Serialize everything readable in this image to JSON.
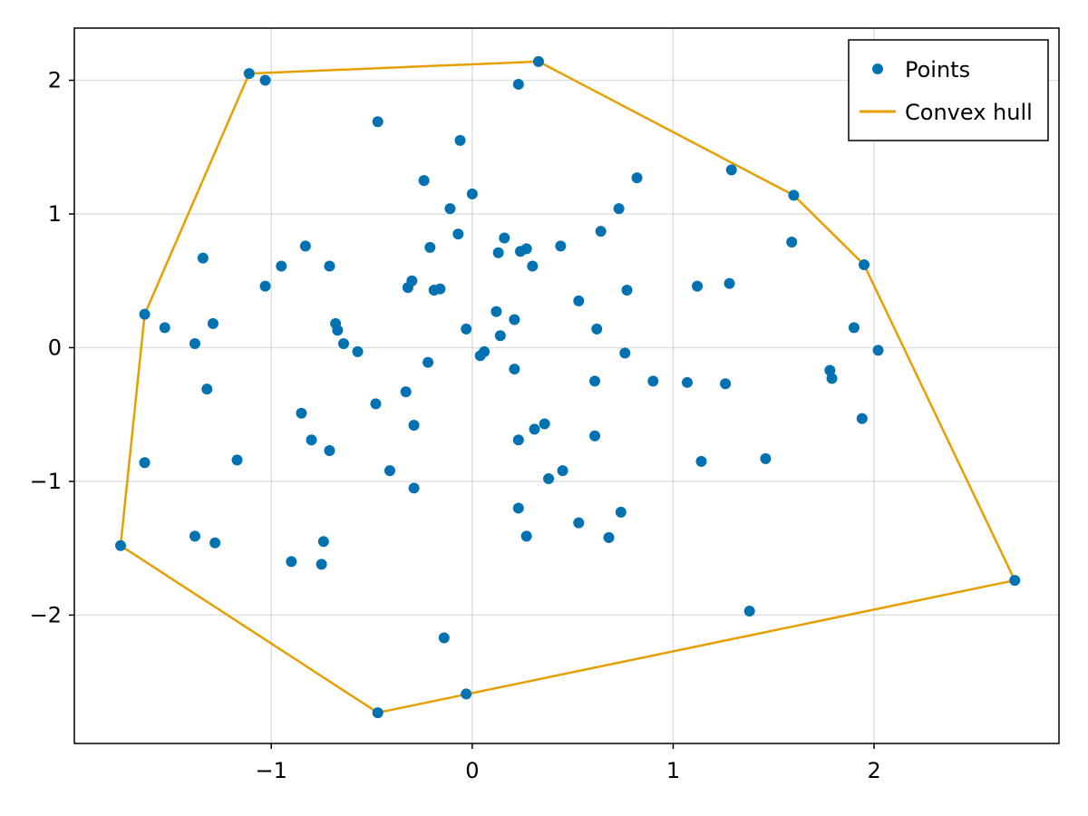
{
  "chart_data": {
    "type": "scatter",
    "title": "",
    "xlabel": "",
    "ylabel": "",
    "xlim": [
      -1.98,
      2.92
    ],
    "ylim": [
      -2.96,
      2.39
    ],
    "grid": true,
    "legend_position": "top-right",
    "x_ticks": [
      {
        "value": -1,
        "label": "−1"
      },
      {
        "value": 0,
        "label": "0"
      },
      {
        "value": 1,
        "label": "1"
      },
      {
        "value": 2,
        "label": "2"
      }
    ],
    "y_ticks": [
      {
        "value": -2,
        "label": "−2"
      },
      {
        "value": -1,
        "label": "−1"
      },
      {
        "value": 0,
        "label": "0"
      },
      {
        "value": 1,
        "label": "1"
      },
      {
        "value": 2,
        "label": "2"
      }
    ],
    "series": [
      {
        "name": "Points",
        "kind": "scatter",
        "color": "#0072b2",
        "points": [
          [
            -1.11,
            2.05
          ],
          [
            -1.03,
            2.0
          ],
          [
            0.33,
            2.14
          ],
          [
            0.23,
            1.97
          ],
          [
            -0.47,
            1.69
          ],
          [
            -0.06,
            1.55
          ],
          [
            -0.24,
            1.25
          ],
          [
            0.0,
            1.15
          ],
          [
            0.82,
            1.27
          ],
          [
            1.29,
            1.33
          ],
          [
            1.6,
            1.14
          ],
          [
            -0.11,
            1.04
          ],
          [
            0.73,
            1.04
          ],
          [
            -0.07,
            0.85
          ],
          [
            0.64,
            0.87
          ],
          [
            -0.21,
            0.75
          ],
          [
            0.16,
            0.82
          ],
          [
            0.24,
            0.72
          ],
          [
            0.27,
            0.74
          ],
          [
            0.13,
            0.71
          ],
          [
            0.44,
            0.76
          ],
          [
            -0.83,
            0.76
          ],
          [
            -1.34,
            0.67
          ],
          [
            -0.95,
            0.61
          ],
          [
            -0.71,
            0.61
          ],
          [
            0.3,
            0.61
          ],
          [
            1.59,
            0.79
          ],
          [
            1.95,
            0.62
          ],
          [
            -1.03,
            0.46
          ],
          [
            -0.3,
            0.5
          ],
          [
            -0.32,
            0.45
          ],
          [
            -0.19,
            0.43
          ],
          [
            -0.16,
            0.44
          ],
          [
            0.77,
            0.43
          ],
          [
            1.12,
            0.46
          ],
          [
            1.28,
            0.48
          ],
          [
            -1.63,
            0.25
          ],
          [
            -1.53,
            0.15
          ],
          [
            -1.29,
            0.18
          ],
          [
            0.53,
            0.35
          ],
          [
            0.12,
            0.27
          ],
          [
            0.21,
            0.21
          ],
          [
            -0.68,
            0.18
          ],
          [
            -0.67,
            0.13
          ],
          [
            -0.03,
            0.14
          ],
          [
            0.14,
            0.09
          ],
          [
            0.62,
            0.14
          ],
          [
            1.9,
            0.15
          ],
          [
            -1.38,
            0.03
          ],
          [
            -0.64,
            0.03
          ],
          [
            -0.57,
            -0.03
          ],
          [
            0.06,
            -0.03
          ],
          [
            0.04,
            -0.06
          ],
          [
            0.76,
            -0.04
          ],
          [
            2.02,
            -0.02
          ],
          [
            -0.22,
            -0.11
          ],
          [
            0.21,
            -0.16
          ],
          [
            1.78,
            -0.17
          ],
          [
            1.79,
            -0.23
          ],
          [
            0.61,
            -0.25
          ],
          [
            0.9,
            -0.25
          ],
          [
            1.07,
            -0.26
          ],
          [
            1.26,
            -0.27
          ],
          [
            -1.32,
            -0.31
          ],
          [
            -0.33,
            -0.33
          ],
          [
            -0.48,
            -0.42
          ],
          [
            -0.85,
            -0.49
          ],
          [
            1.94,
            -0.53
          ],
          [
            -0.29,
            -0.58
          ],
          [
            0.36,
            -0.57
          ],
          [
            0.31,
            -0.61
          ],
          [
            -0.8,
            -0.69
          ],
          [
            0.23,
            -0.69
          ],
          [
            0.61,
            -0.66
          ],
          [
            -0.71,
            -0.77
          ],
          [
            -1.17,
            -0.84
          ],
          [
            -1.63,
            -0.86
          ],
          [
            1.14,
            -0.85
          ],
          [
            1.46,
            -0.83
          ],
          [
            -0.41,
            -0.92
          ],
          [
            0.45,
            -0.92
          ],
          [
            0.38,
            -0.98
          ],
          [
            -0.29,
            -1.05
          ],
          [
            0.23,
            -1.2
          ],
          [
            0.74,
            -1.23
          ],
          [
            0.53,
            -1.31
          ],
          [
            -1.38,
            -1.41
          ],
          [
            0.27,
            -1.41
          ],
          [
            0.68,
            -1.42
          ],
          [
            -1.28,
            -1.46
          ],
          [
            -0.74,
            -1.45
          ],
          [
            -1.75,
            -1.48
          ],
          [
            -0.9,
            -1.6
          ],
          [
            -0.75,
            -1.62
          ],
          [
            2.7,
            -1.74
          ],
          [
            1.38,
            -1.97
          ],
          [
            -0.14,
            -2.17
          ],
          [
            -0.03,
            -2.59
          ],
          [
            -0.47,
            -2.73
          ]
        ]
      },
      {
        "name": "Convex hull",
        "kind": "line",
        "color": "#e69f00",
        "points": [
          [
            -1.11,
            2.05
          ],
          [
            0.33,
            2.14
          ],
          [
            1.6,
            1.14
          ],
          [
            1.95,
            0.62
          ],
          [
            2.7,
            -1.74
          ],
          [
            -0.47,
            -2.73
          ],
          [
            -1.75,
            -1.48
          ],
          [
            -1.63,
            0.25
          ],
          [
            -1.11,
            2.05
          ]
        ]
      }
    ]
  }
}
